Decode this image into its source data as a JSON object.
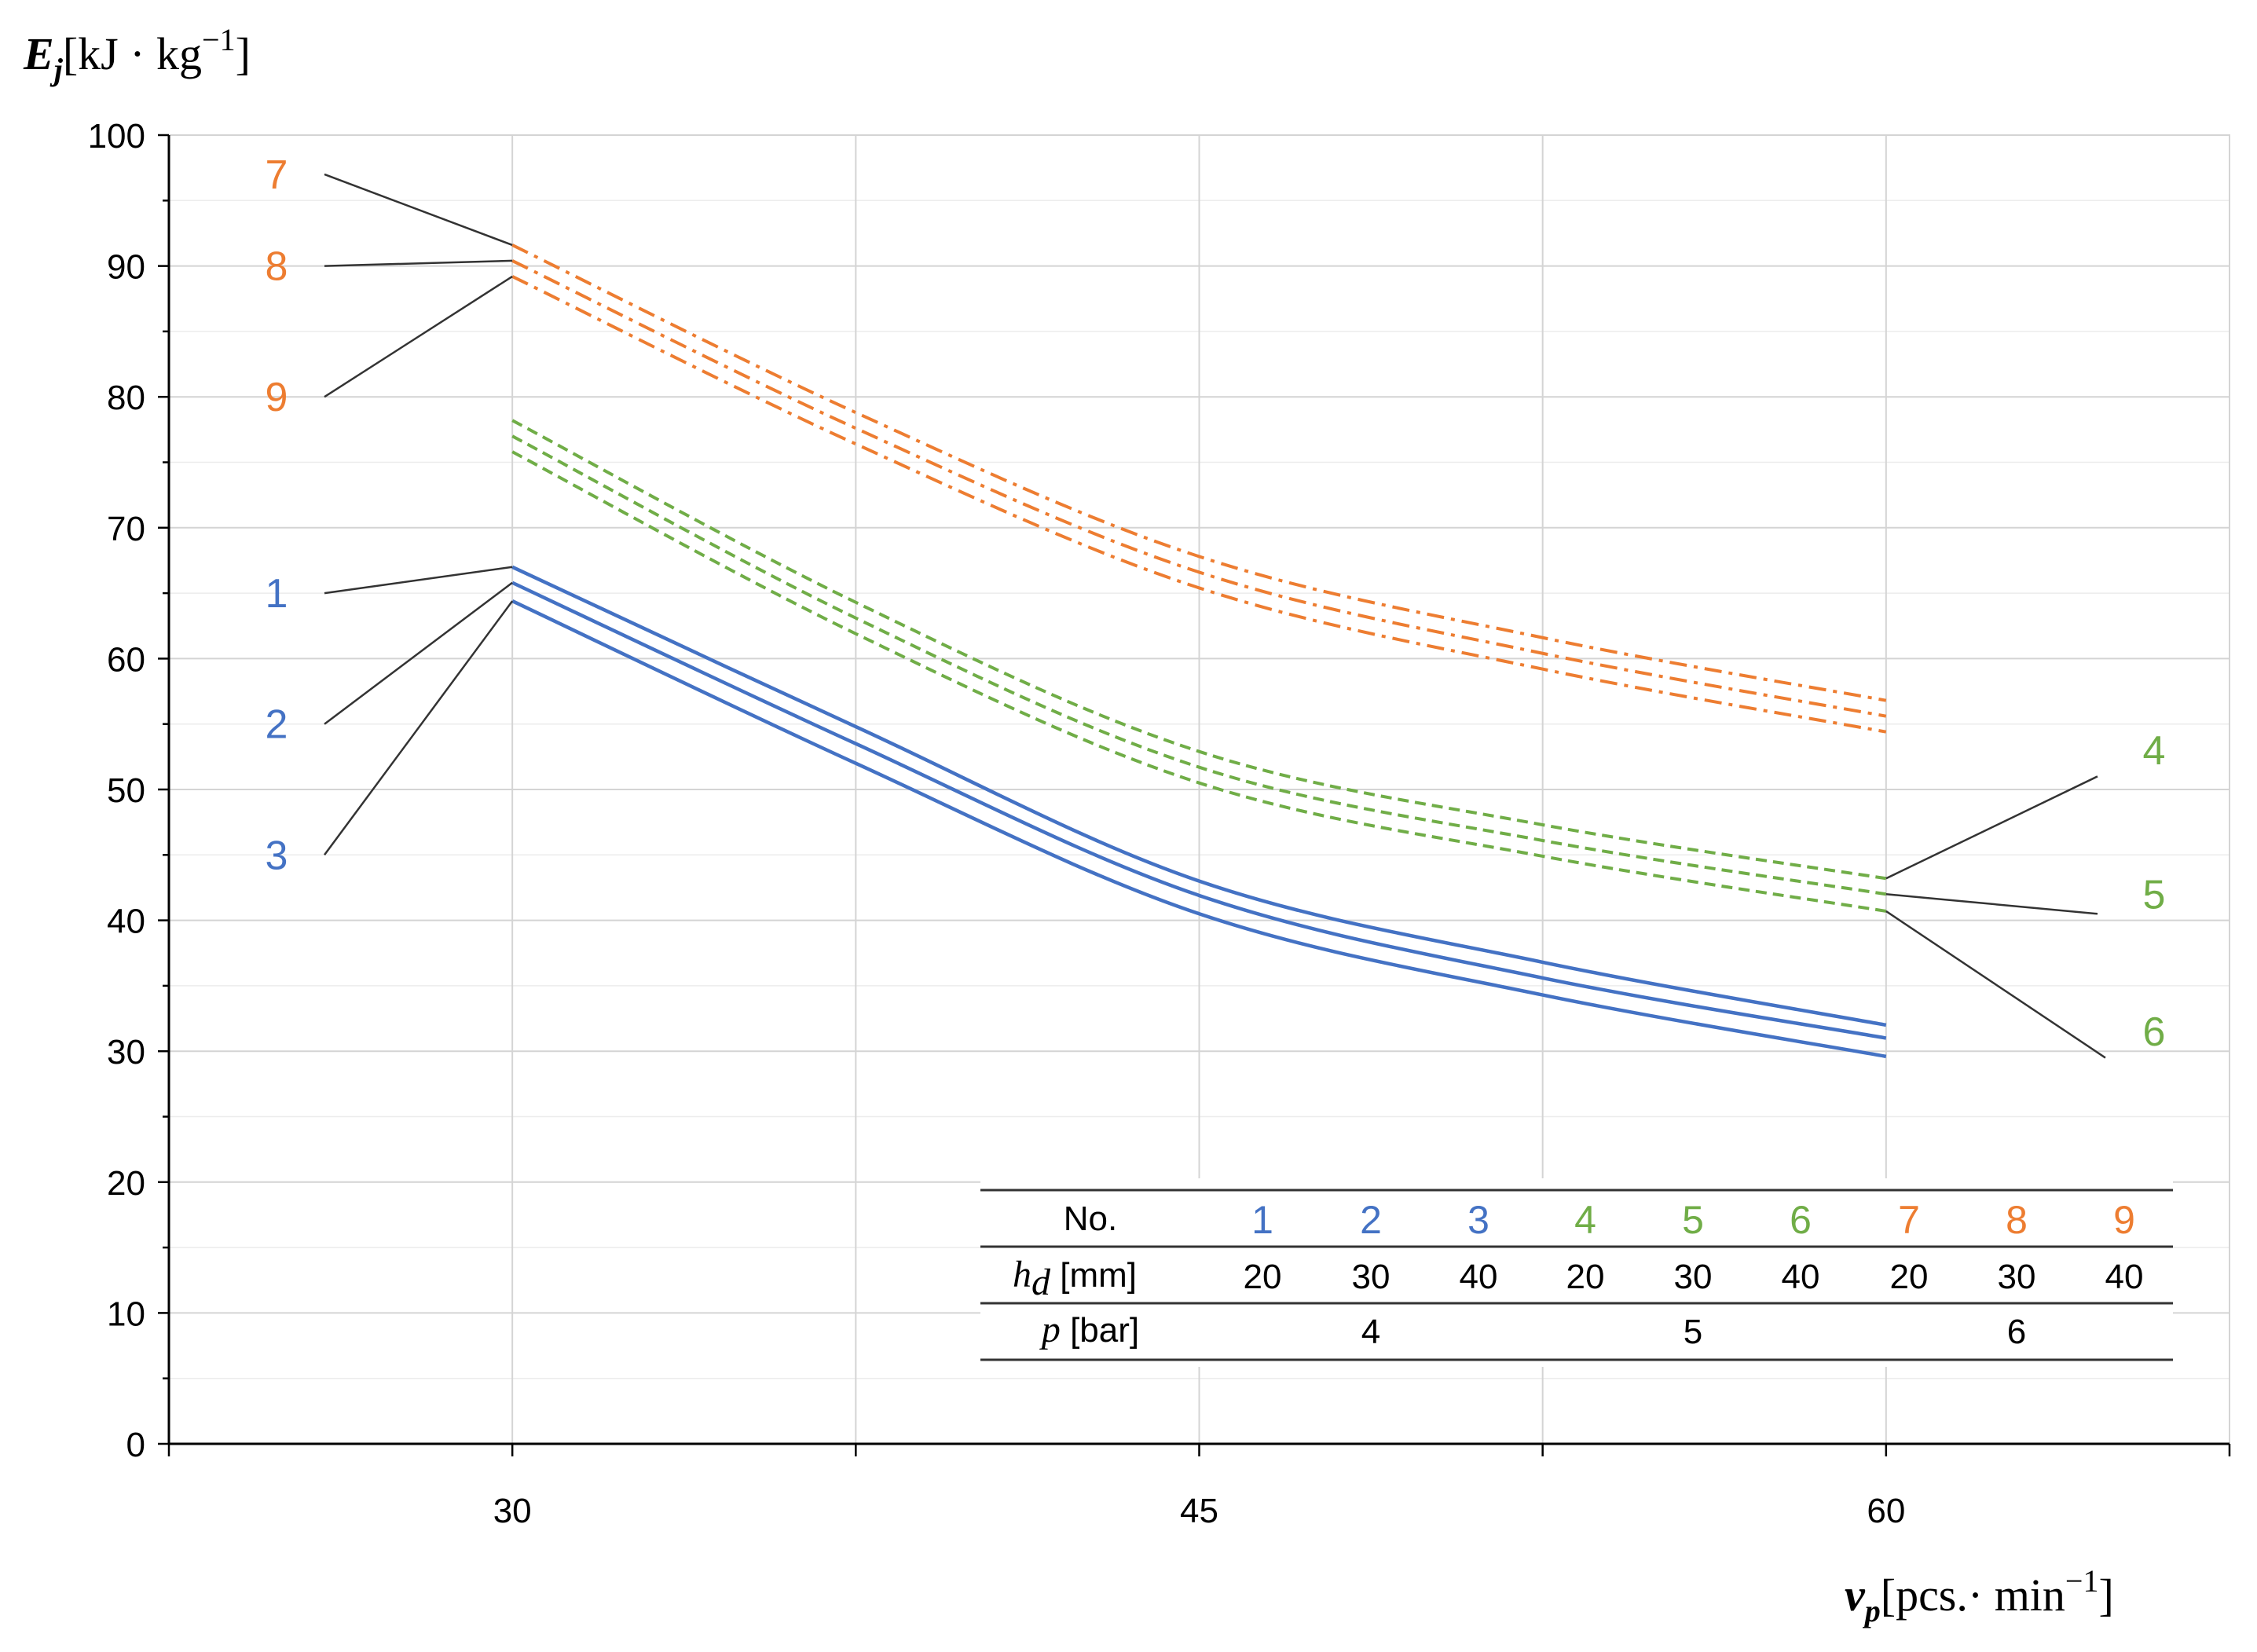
{
  "chart_data": {
    "type": "line",
    "xlabel": {
      "symbol": "v",
      "sub": "p",
      "unit": "[pcs.· min",
      "sup": "−1",
      "close": "]"
    },
    "ylabel": {
      "symbol": "E",
      "sub": "j",
      "unit": "[kJ · kg",
      "sup": "−1",
      "close": "]"
    },
    "x_ticks": [
      30,
      45,
      60
    ],
    "y_ticks": [
      0,
      10,
      20,
      30,
      40,
      50,
      60,
      70,
      80,
      90,
      100
    ],
    "xlim": [
      22.5,
      67.5
    ],
    "ylim": [
      0,
      100
    ],
    "grid": true,
    "x": [
      30,
      37.5,
      45,
      52.5,
      60
    ],
    "series": [
      {
        "name": "1",
        "group": "blue",
        "values": [
          67.0,
          54.8,
          43.0,
          36.8,
          32.0
        ]
      },
      {
        "name": "2",
        "group": "blue",
        "values": [
          65.8,
          53.5,
          41.9,
          35.6,
          31.0
        ]
      },
      {
        "name": "3",
        "group": "blue",
        "values": [
          64.4,
          52.0,
          40.5,
          34.3,
          29.6
        ]
      },
      {
        "name": "4",
        "group": "green",
        "values": [
          78.2,
          64.3,
          52.9,
          47.3,
          43.2
        ]
      },
      {
        "name": "5",
        "group": "green",
        "values": [
          77.0,
          63.1,
          51.7,
          46.1,
          42.0
        ]
      },
      {
        "name": "6",
        "group": "green",
        "values": [
          75.8,
          61.9,
          50.5,
          44.9,
          40.7
        ]
      },
      {
        "name": "7",
        "group": "orange",
        "values": [
          91.6,
          78.8,
          67.8,
          61.6,
          56.8
        ]
      },
      {
        "name": "8",
        "group": "orange",
        "values": [
          90.4,
          77.6,
          66.6,
          60.4,
          55.6
        ]
      },
      {
        "name": "9",
        "group": "orange",
        "values": [
          89.2,
          76.4,
          65.4,
          59.2,
          54.4
        ]
      }
    ],
    "colors": {
      "blue": "#4472C4",
      "green": "#70AD47",
      "orange": "#ED7D31"
    },
    "table": {
      "header_label": "No.",
      "numbers": [
        "1",
        "2",
        "3",
        "4",
        "5",
        "6",
        "7",
        "8",
        "9"
      ],
      "hd_symbol": "h",
      "hd_sub": "d",
      "hd_unit": " [mm]",
      "hd_values": [
        "20",
        "30",
        "40",
        "20",
        "30",
        "40",
        "20",
        "30",
        "40"
      ],
      "p_symbol": "p",
      "p_unit": " [bar]",
      "p_values": [
        "4",
        "5",
        "6"
      ]
    }
  }
}
